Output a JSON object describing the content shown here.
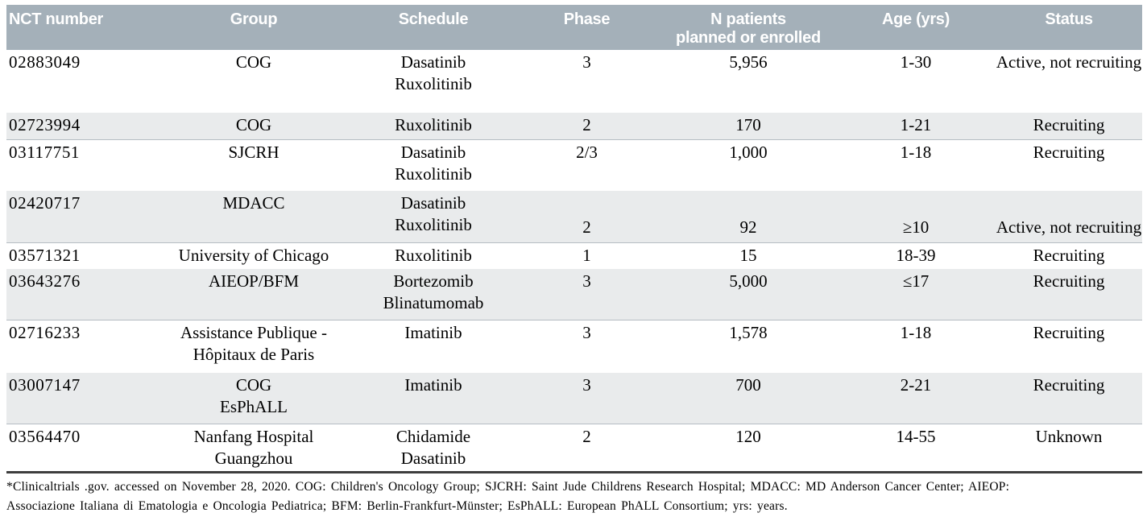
{
  "table": {
    "columns": [
      {
        "label": "NCT number"
      },
      {
        "label": "Group"
      },
      {
        "label": "Schedule"
      },
      {
        "label": "Phase"
      },
      {
        "label": "N patients\nplanned or enrolled"
      },
      {
        "label": "Age (yrs)"
      },
      {
        "label": "Status"
      }
    ],
    "rows": [
      [
        "02883049",
        "COG",
        "Dasatinib\nRuxolitinib",
        "3",
        "5,956",
        "1-30",
        "Active, not recruiting"
      ],
      [
        "02723994",
        "COG",
        "Ruxolitinib",
        "2",
        "170",
        "1-21",
        "Recruiting"
      ],
      [
        "03117751",
        "SJCRH",
        "Dasatinib\nRuxolitinib",
        "2/3",
        "1,000",
        "1-18",
        "Recruiting"
      ],
      [
        "02420717",
        "MDACC",
        "Dasatinib\nRuxolitinib",
        "2",
        "92",
        "≥10",
        "Active, not recruiting"
      ],
      [
        "03571321",
        "University of Chicago",
        "Ruxolitinib",
        "1",
        "15",
        "18-39",
        "Recruiting"
      ],
      [
        "03643276",
        "AIEOP/BFM",
        "Bortezomib\nBlinatumomab",
        "3",
        "5,000",
        "≤17",
        "Recruiting"
      ],
      [
        "02716233",
        "Assistance Publique -\nHôpitaux de Paris",
        "Imatinib",
        "3",
        "1,578",
        "1-18",
        "Recruiting"
      ],
      [
        "03007147",
        "COG\nEsPhALL",
        "Imatinib",
        "3",
        "700",
        "2-21",
        "Recruiting"
      ],
      [
        "03564470",
        "Nanfang Hospital\nGuangzhou",
        "Chidamide\nDasatinib",
        "2",
        "120",
        "14-55",
        "Unknown"
      ]
    ]
  },
  "footnote": {
    "line1": "*Clinicaltrials .gov. accessed on November 28, 2020. COG: Children's Oncology Group; SJCRH: Saint Jude Childrens Research Hospital; MDACC: MD Anderson Cancer Center; AIEOP:",
    "line2": "Associazione Italiana di Ematologia e Oncologia Pediatrica; BFM: Berlin-Frankfurt-Münster; EsPhALL: European PhALL Consortium; yrs: years."
  },
  "colors": {
    "header_bg": "#a4b0b9",
    "header_text": "#ffffff",
    "stripe_bg": "#e9ebec",
    "stripe_border": "#b6bdc3",
    "bottom_rule": "#3d3d3d",
    "body_text": "#000000"
  }
}
